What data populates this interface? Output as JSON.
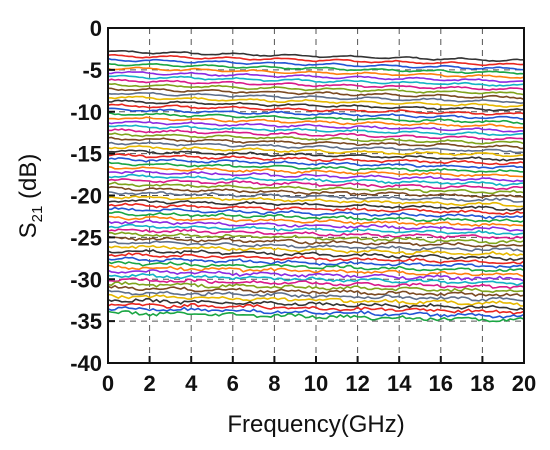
{
  "chart_data": {
    "type": "line",
    "title": "",
    "xlabel": "Frequency(GHz)",
    "ylabel": {
      "main": "S",
      "subscript": "21",
      "unit": " (dB)"
    },
    "xlim": [
      0,
      20
    ],
    "ylim": [
      -40,
      0
    ],
    "x_ticks": [
      "0",
      "2",
      "4",
      "6",
      "8",
      "10",
      "12",
      "14",
      "16",
      "18",
      "20"
    ],
    "y_ticks": [
      "0",
      "-5",
      "-10",
      "-15",
      "-20",
      "-25",
      "-30",
      "-35",
      "-40"
    ],
    "grid": "dashed",
    "legend": "none",
    "x": [
      0,
      1,
      2,
      3,
      4,
      5,
      6,
      7,
      8,
      9,
      10,
      11,
      12,
      13,
      14,
      15,
      16,
      17,
      18,
      19,
      20
    ],
    "series_summary": {
      "count": 64,
      "start_db_range": [
        -2.8,
        -34.0
      ],
      "end_db_range": [
        -3.9,
        -34.9
      ],
      "note_values_approximate": true
    },
    "palette": [
      "#333333",
      "#e8261f",
      "#2255d4",
      "#1aa643",
      "#ff7f0e",
      "#8a2be2",
      "#13b3c4",
      "#d81b8a",
      "#7fa31c",
      "#7b4a22",
      "#5f6f8a",
      "#e6b800"
    ]
  }
}
